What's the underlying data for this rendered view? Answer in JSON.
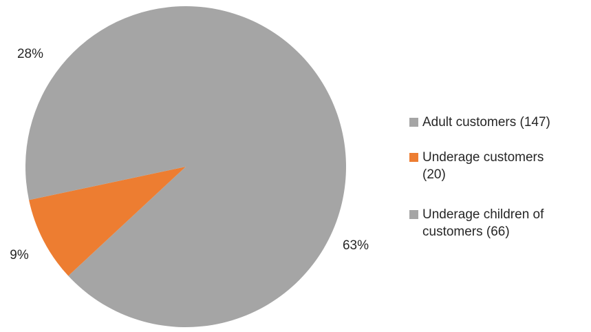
{
  "chart_data": {
    "type": "pie",
    "title": "",
    "slices": [
      {
        "name": "Adult customers (147)",
        "value": 147,
        "percent_label": "63%",
        "color": "#a5a5a5"
      },
      {
        "name": "Underage customers (20)",
        "value": 20,
        "percent_label": "9%",
        "color": "#ed7d31"
      },
      {
        "name": "Underage children of customers (66)",
        "value": 66,
        "percent_label": "28%",
        "color": "#a5a5a5"
      }
    ],
    "legend_position": "right",
    "start_angle": "12 o'clock",
    "direction": "clockwise"
  }
}
